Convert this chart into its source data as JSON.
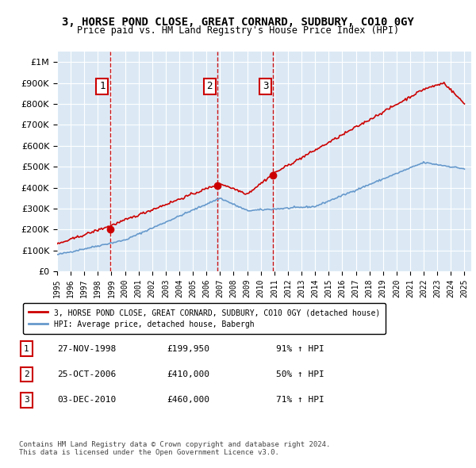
{
  "title": "3, HORSE POND CLOSE, GREAT CORNARD, SUDBURY, CO10 0GY",
  "subtitle": "Price paid vs. HM Land Registry's House Price Index (HPI)",
  "ylabel_ticks": [
    "£0",
    "£100K",
    "£200K",
    "£300K",
    "£400K",
    "£500K",
    "£600K",
    "£700K",
    "£800K",
    "£900K",
    "£1M"
  ],
  "ytick_values": [
    0,
    100000,
    200000,
    300000,
    400000,
    500000,
    600000,
    700000,
    800000,
    900000,
    1000000
  ],
  "ylim": [
    0,
    1050000
  ],
  "xlim_start": 1995.0,
  "xlim_end": 2025.5,
  "background_color": "#dce9f5",
  "plot_bg_color": "#dce9f5",
  "sale_color": "#cc0000",
  "hpi_color": "#6699cc",
  "sale_marker_color": "#cc0000",
  "vline_color": "#cc0000",
  "marker_label_border": "#cc0000",
  "transactions": [
    {
      "id": 1,
      "date_num": 1998.9,
      "price": 199950,
      "label": "1"
    },
    {
      "id": 2,
      "date_num": 2006.82,
      "price": 410000,
      "label": "2"
    },
    {
      "id": 3,
      "date_num": 2010.92,
      "price": 460000,
      "label": "3"
    }
  ],
  "legend_sale_label": "3, HORSE POND CLOSE, GREAT CORNARD, SUDBURY, CO10 0GY (detached house)",
  "legend_hpi_label": "HPI: Average price, detached house, Babergh",
  "table_rows": [
    {
      "id": "1",
      "date": "27-NOV-1998",
      "price": "£199,950",
      "change": "91% ↑ HPI"
    },
    {
      "id": "2",
      "date": "25-OCT-2006",
      "price": "£410,000",
      "change": "50% ↑ HPI"
    },
    {
      "id": "3",
      "date": "03-DEC-2010",
      "price": "£460,000",
      "change": "71% ↑ HPI"
    }
  ],
  "footer": "Contains HM Land Registry data © Crown copyright and database right 2024.\nThis data is licensed under the Open Government Licence v3.0.",
  "xtick_years": [
    1995,
    1996,
    1997,
    1998,
    1999,
    2000,
    2001,
    2002,
    2003,
    2004,
    2005,
    2006,
    2007,
    2008,
    2009,
    2010,
    2011,
    2012,
    2013,
    2014,
    2015,
    2016,
    2017,
    2018,
    2019,
    2020,
    2021,
    2022,
    2023,
    2024,
    2025
  ]
}
